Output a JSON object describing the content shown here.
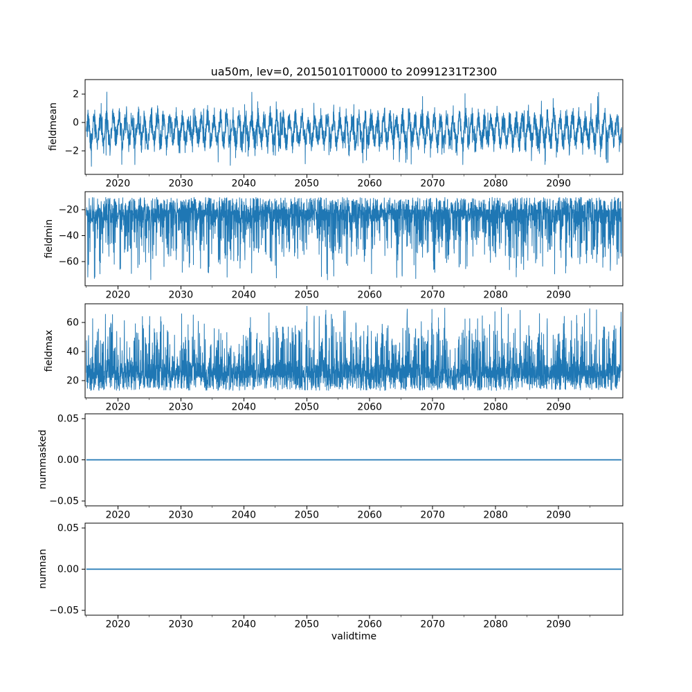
{
  "figure": {
    "background_color": "#ffffff",
    "line_color": "#1f77b4",
    "axis_color": "#000000",
    "text_color": "#000000"
  },
  "chart_data": {
    "type": "line",
    "title": "ua50m, lev=0, 20150101T0000 to 20991231T2300",
    "xlabel": "validtime",
    "layout": "5 stacked subplots (time series), shared x axis in years",
    "x_axis": {
      "lim": [
        2014.8,
        2100.2
      ],
      "major_ticks": [
        2020,
        2030,
        2040,
        2050,
        2060,
        2070,
        2080,
        2090
      ],
      "major_tick_labels": [
        "2020",
        "2030",
        "2040",
        "2050",
        "2060",
        "2070",
        "2080",
        "2090"
      ],
      "minor_ticks": [
        2015,
        2025,
        2035,
        2045,
        2055,
        2065,
        2075,
        2085,
        2095
      ],
      "data_start": 2015.0,
      "data_end": 2100.0
    },
    "panels": [
      {
        "ylabel": "fieldmean",
        "ylim": [
          -3.66,
          3.02
        ],
        "yticks": [
          2,
          0,
          -2
        ],
        "ytick_labels": [
          "2",
          "0",
          "−2"
        ],
        "series_summary": "dense noisy hourly series with annual cycle; mean ≈ −0.5, core band −2.5..1.5, extremes −3.5..2.6, constant statistics 2015–2100",
        "synth": {
          "kind": "band-noise",
          "seed": 42,
          "n": 3400,
          "base": -0.55,
          "seas_amp": 1.05,
          "noise": 0.95,
          "out_prob": 0.06,
          "out_extra": 1.25,
          "clip_lo": -3.55,
          "clip_hi": 2.65
        }
      },
      {
        "ylabel": "fieldmin",
        "ylim": [
          -78.7,
          -6.1
        ],
        "yticks": [
          -20,
          -40,
          -60
        ],
        "ytick_labels": [
          "−20",
          "−40",
          "−60"
        ],
        "series_summary": "dense band −10..−30 with frequent downward spikes reaching −40..−75 throughout 2015–2100",
        "synth": {
          "kind": "spike-noise",
          "seed": 7,
          "n": 3400,
          "band_a": -10.5,
          "band_b": -30,
          "spike_from": -20,
          "spike_amp": -55,
          "spike_pow": 2.4,
          "spike_prob": 0.5,
          "seas_phase": 0.0
        },
        "data_max": -10,
        "data_min": -75
      },
      {
        "ylabel": "fieldmax",
        "ylim": [
          8.1,
          72.9
        ],
        "yticks": [
          60,
          40,
          20
        ],
        "ytick_labels": [
          "60",
          "40",
          "20"
        ],
        "series_summary": "dense band 13..32 with frequent upward spikes reaching 40..72 throughout 2015–2100",
        "synth": {
          "kind": "spike-noise",
          "seed": 19,
          "n": 3400,
          "band_a": 13.2,
          "band_b": 32,
          "spike_from": 22,
          "spike_amp": 50,
          "spike_pow": 2.4,
          "spike_prob": 0.5,
          "seas_phase": 1.6
        },
        "data_max": 72,
        "data_min": 13
      },
      {
        "ylabel": "nummasked",
        "ylim": [
          -0.0558,
          0.0558
        ],
        "yticks": [
          0.05,
          0,
          -0.05
        ],
        "ytick_labels": [
          "0.05",
          "0.00",
          "−0.05"
        ],
        "series_summary": "constant 0 for the entire period",
        "synth": {
          "kind": "constant",
          "value": 0
        }
      },
      {
        "ylabel": "numnan",
        "ylim": [
          -0.0558,
          0.0558
        ],
        "yticks": [
          0.05,
          0,
          -0.05
        ],
        "ytick_labels": [
          "0.05",
          "0.00",
          "−0.05"
        ],
        "series_summary": "constant 0 for the entire period",
        "synth": {
          "kind": "constant",
          "value": 0
        }
      }
    ]
  }
}
